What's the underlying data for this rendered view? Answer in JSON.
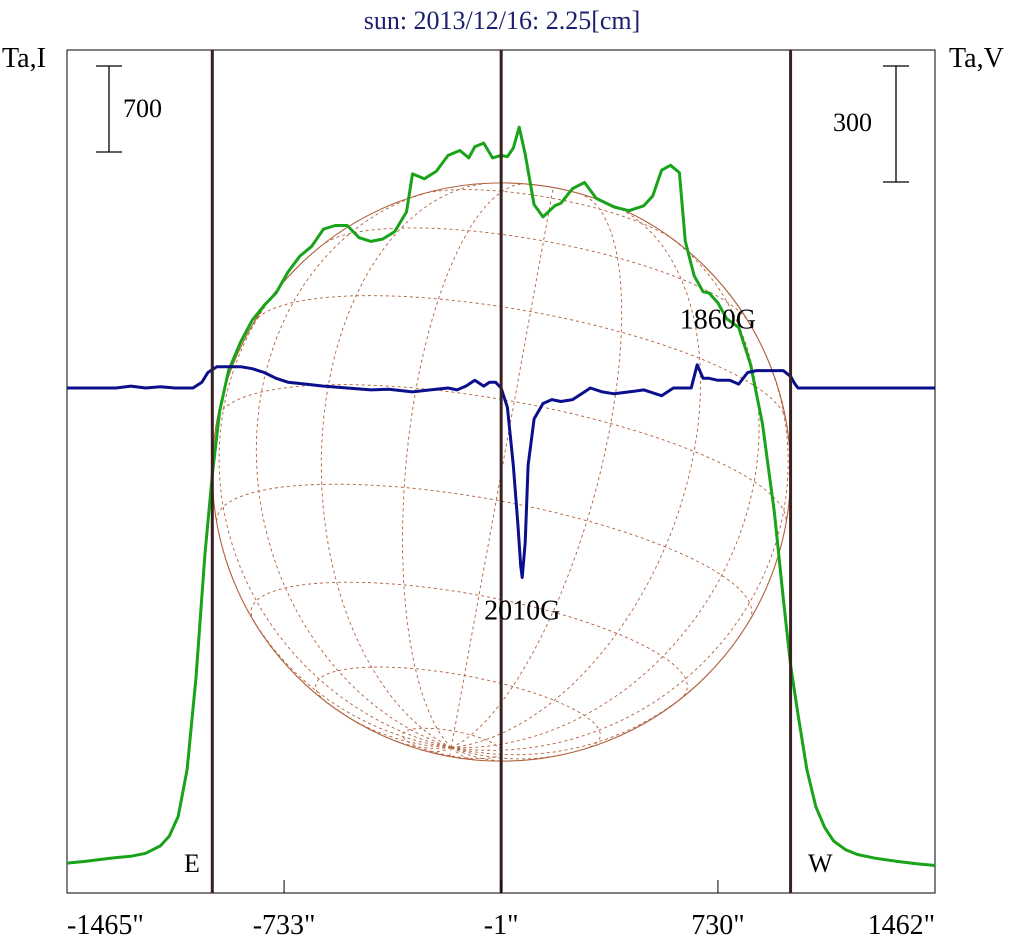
{
  "chart_data": {
    "type": "line",
    "title": "sun: 2013/12/16: 2.25[cm]",
    "left_axis_label": "Ta,I",
    "right_axis_label": "Ta,V",
    "xlim": [
      -1465,
      1462
    ],
    "x_ticks": [
      {
        "value": -1465,
        "label": "-1465\""
      },
      {
        "value": -733,
        "label": "-733\""
      },
      {
        "value": -1,
        "label": "-1\""
      },
      {
        "value": 730,
        "label": "730\""
      },
      {
        "value": 1462,
        "label": "1462\""
      }
    ],
    "vertical_lines": [
      -975,
      -1,
      975
    ],
    "limb_labels": {
      "east": "E",
      "west": "W"
    },
    "solar_radius_arcsec": 975,
    "scale_bars": {
      "intensity": {
        "value": 700,
        "label": "700"
      },
      "polarization": {
        "value": 300,
        "label": "300"
      }
    },
    "annotations": [
      {
        "text": "1860G",
        "x": 730,
        "ta_v": 20
      },
      {
        "text": "2010G",
        "x": 70,
        "ta_v": -490
      }
    ],
    "colors": {
      "title": "#1b1f6e",
      "intensity": "#19a319",
      "polarization": "#0b0f8c",
      "limb_lines": "#3a2020",
      "globe": "#b0603a",
      "text": "#000000"
    },
    "series": [
      {
        "name": "Intensity (Ta,I)",
        "color": "#19a319",
        "x": [
          -1465,
          -1400,
          -1350,
          -1300,
          -1250,
          -1200,
          -1150,
          -1120,
          -1090,
          -1060,
          -1030,
          -1000,
          -975,
          -950,
          -920,
          -880,
          -840,
          -800,
          -760,
          -720,
          -680,
          -640,
          -600,
          -560,
          -520,
          -480,
          -440,
          -400,
          -360,
          -320,
          -300,
          -260,
          -220,
          -180,
          -140,
          -110,
          -90,
          -60,
          -30,
          -1,
          20,
          40,
          60,
          80,
          110,
          140,
          180,
          200,
          240,
          280,
          320,
          380,
          430,
          480,
          510,
          540,
          570,
          600,
          620,
          650,
          680,
          700,
          730,
          760,
          800,
          840,
          880,
          920,
          950,
          975,
          1000,
          1030,
          1060,
          1090,
          1120,
          1160,
          1200,
          1260,
          1330,
          1400,
          1462
        ],
        "y": [
          40,
          55,
          70,
          85,
          95,
          120,
          180,
          260,
          420,
          800,
          1550,
          2550,
          3200,
          3720,
          4050,
          4280,
          4460,
          4580,
          4680,
          4850,
          4980,
          5060,
          5200,
          5230,
          5230,
          5130,
          5100,
          5120,
          5180,
          5340,
          5650,
          5610,
          5670,
          5800,
          5840,
          5780,
          5870,
          5900,
          5780,
          5800,
          5790,
          5860,
          6030,
          5810,
          5400,
          5300,
          5390,
          5410,
          5530,
          5580,
          5450,
          5380,
          5350,
          5390,
          5470,
          5680,
          5720,
          5660,
          5100,
          4820,
          4690,
          4680,
          4600,
          4470,
          4400,
          4100,
          3620,
          2900,
          2200,
          1650,
          1250,
          800,
          500,
          330,
          220,
          150,
          110,
          80,
          55,
          35,
          20
        ]
      },
      {
        "name": "Polarization (Ta,V)",
        "color": "#0b0f8c",
        "x": [
          -1465,
          -1300,
          -1250,
          -1200,
          -1150,
          -1100,
          -1040,
          -1010,
          -990,
          -980,
          -960,
          -940,
          -880,
          -840,
          -800,
          -760,
          -720,
          -660,
          -600,
          -520,
          -440,
          -380,
          -300,
          -240,
          -180,
          -150,
          -120,
          -90,
          -60,
          -40,
          -20,
          -1,
          20,
          40,
          55,
          65,
          70,
          80,
          90,
          110,
          140,
          170,
          200,
          240,
          280,
          300,
          340,
          380,
          430,
          480,
          540,
          580,
          620,
          640,
          660,
          680,
          700,
          730,
          770,
          800,
          830,
          860,
          890,
          920,
          950,
          975,
          990,
          1000,
          1020,
          1060,
          1120,
          1200,
          1300,
          1400,
          1462
        ],
        "y": [
          0,
          0,
          5,
          0,
          3,
          0,
          0,
          15,
          40,
          45,
          55,
          55,
          55,
          50,
          40,
          25,
          15,
          10,
          5,
          0,
          -5,
          -3,
          -10,
          -5,
          0,
          -5,
          5,
          20,
          5,
          15,
          15,
          0,
          -50,
          -200,
          -350,
          -460,
          -490,
          -400,
          -200,
          -80,
          -40,
          -30,
          -35,
          -30,
          -10,
          0,
          -10,
          -15,
          -10,
          -5,
          -20,
          0,
          0,
          0,
          60,
          25,
          25,
          20,
          20,
          10,
          40,
          45,
          45,
          45,
          45,
          30,
          10,
          0,
          0,
          0,
          0,
          0,
          0,
          0,
          0
        ]
      }
    ]
  }
}
